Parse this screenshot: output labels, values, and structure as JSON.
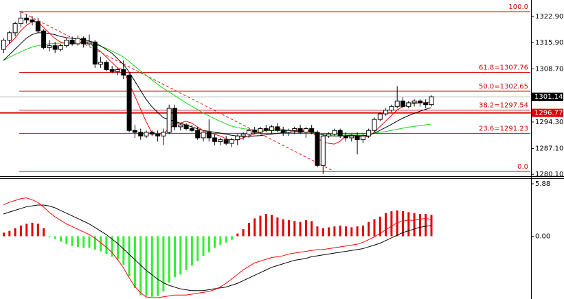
{
  "chart_data": [
    {
      "type": "candlestick",
      "ylim": [
        1279.39,
        1327.4
      ],
      "yticks": [
        {
          "value": 1322.9,
          "label": "1322.90"
        },
        {
          "value": 1315.9,
          "label": "1315.90"
        },
        {
          "value": 1308.7,
          "label": "1308.70"
        },
        {
          "value": 1294.3,
          "label": "1294.30"
        },
        {
          "value": 1287.1,
          "label": "1287.10"
        },
        {
          "value": 1280.1,
          "label": "1280.10"
        }
      ],
      "up_color": "#ffffff",
      "down_color": "#000000",
      "candles": [
        [
          1314,
          1317,
          1313,
          1316.5
        ],
        [
          1316.5,
          1319,
          1315.5,
          1318.5
        ],
        [
          1318.5,
          1321.5,
          1317.5,
          1321
        ],
        [
          1321,
          1324.3,
          1320,
          1322.5
        ],
        [
          1322.5,
          1323.5,
          1321,
          1322
        ],
        [
          1322,
          1323,
          1320.5,
          1321.5
        ],
        [
          1321.5,
          1322.5,
          1318.5,
          1319
        ],
        [
          1319,
          1319.5,
          1314,
          1314.5
        ],
        [
          1314.5,
          1316.5,
          1313.5,
          1315
        ],
        [
          1315,
          1316,
          1313,
          1314
        ],
        [
          1314,
          1315.5,
          1313.5,
          1315
        ],
        [
          1315,
          1317,
          1314.5,
          1316.5
        ],
        [
          1316.5,
          1317.5,
          1315,
          1315.5
        ],
        [
          1315.5,
          1317.8,
          1315,
          1317
        ],
        [
          1317,
          1317.5,
          1314.5,
          1315.5
        ],
        [
          1315.5,
          1318,
          1315,
          1316
        ],
        [
          1316,
          1316.5,
          1309,
          1310
        ],
        [
          1310,
          1312,
          1309,
          1310.5
        ],
        [
          1310.5,
          1311,
          1308,
          1308.5
        ],
        [
          1308.5,
          1309.5,
          1307.5,
          1308
        ],
        [
          1308,
          1309,
          1307,
          1308.5
        ],
        [
          1308.5,
          1311,
          1306,
          1307
        ],
        [
          1307,
          1307.5,
          1291.5,
          1292
        ],
        [
          1292,
          1293.5,
          1290,
          1291.5
        ],
        [
          1291.5,
          1292.5,
          1289.5,
          1290.5
        ],
        [
          1290.5,
          1292,
          1290,
          1291.5
        ],
        [
          1291.5,
          1292,
          1290.5,
          1291
        ],
        [
          1291,
          1292,
          1289,
          1290.5
        ],
        [
          1290.5,
          1292.5,
          1288,
          1291.5
        ],
        [
          1291.5,
          1299,
          1291,
          1298
        ],
        [
          1298,
          1299,
          1292,
          1293
        ],
        [
          1293,
          1294,
          1292,
          1293.5
        ],
        [
          1293.5,
          1294,
          1292,
          1292.5
        ],
        [
          1292.5,
          1293.5,
          1291.5,
          1292
        ],
        [
          1292,
          1293,
          1289.5,
          1290
        ],
        [
          1290,
          1292,
          1289,
          1291.5
        ],
        [
          1291.5,
          1295,
          1289,
          1290
        ],
        [
          1290,
          1291,
          1288,
          1289
        ],
        [
          1289,
          1290,
          1288,
          1289.5
        ],
        [
          1289.5,
          1290.5,
          1288,
          1288.5
        ],
        [
          1288.5,
          1290,
          1287.5,
          1289.5
        ],
        [
          1289.5,
          1291,
          1288,
          1290.5
        ],
        [
          1290.5,
          1291.5,
          1289.5,
          1291
        ],
        [
          1291,
          1292.5,
          1290,
          1292
        ],
        [
          1292,
          1293,
          1291,
          1291.5
        ],
        [
          1291.5,
          1293,
          1291,
          1292.5
        ],
        [
          1292.5,
          1293.5,
          1291.5,
          1292
        ],
        [
          1292,
          1293.5,
          1291,
          1293
        ],
        [
          1293,
          1294,
          1291.5,
          1292
        ],
        [
          1292,
          1293,
          1290.5,
          1291.5
        ],
        [
          1291.5,
          1292.5,
          1290.5,
          1292
        ],
        [
          1292,
          1293,
          1291,
          1292.5
        ],
        [
          1292.5,
          1293.5,
          1291,
          1291.5
        ],
        [
          1291.5,
          1293,
          1290,
          1292.5
        ],
        [
          1292.5,
          1293.5,
          1291,
          1291.5
        ],
        [
          1291.5,
          1292,
          1282,
          1282.5
        ],
        [
          1282.5,
          1291,
          1280.2,
          1290.5
        ],
        [
          1290.5,
          1291.5,
          1290,
          1291
        ],
        [
          1291,
          1292.5,
          1290.5,
          1292
        ],
        [
          1292,
          1292.5,
          1290,
          1290.5
        ],
        [
          1290.5,
          1291.5,
          1289,
          1290
        ],
        [
          1290,
          1291,
          1289,
          1290.5
        ],
        [
          1290.5,
          1291.5,
          1285.5,
          1289.5
        ],
        [
          1289.5,
          1291,
          1288.5,
          1290.5
        ],
        [
          1290.5,
          1292.5,
          1290,
          1292
        ],
        [
          1292,
          1295.5,
          1291.5,
          1295
        ],
        [
          1295,
          1297,
          1294.5,
          1296.5
        ],
        [
          1296.5,
          1298,
          1296,
          1297.5
        ],
        [
          1297.5,
          1299,
          1297,
          1298.5
        ],
        [
          1298.5,
          1304,
          1298,
          1300
        ],
        [
          1300,
          1301,
          1298,
          1298.5
        ],
        [
          1298.5,
          1300,
          1298,
          1299.5
        ],
        [
          1299.5,
          1300.5,
          1298.5,
          1300
        ],
        [
          1300,
          1300.5,
          1298.5,
          1299.5
        ],
        [
          1299.5,
          1300.5,
          1298,
          1299
        ],
        [
          1299,
          1301.5,
          1298.5,
          1301.14
        ]
      ],
      "series": [
        {
          "color": "#22cc22",
          "values": [
            1311,
            1311.8,
            1312.6,
            1313.3,
            1314,
            1314.6,
            1315,
            1315.3,
            1315.5,
            1315.6,
            1315.7,
            1315.8,
            1315.8,
            1315.8,
            1315.7,
            1315.6,
            1315.3,
            1314.9,
            1314.3,
            1313.6,
            1312.8,
            1312,
            1310.8,
            1309.5,
            1308.2,
            1307,
            1305.8,
            1304.6,
            1303.5,
            1302.5,
            1301.5,
            1300.5,
            1299.5,
            1298.6,
            1297.7,
            1296.8,
            1296,
            1295.2,
            1294.5,
            1293.8,
            1293.2,
            1292.8,
            1292.5,
            1292.3,
            1292.2,
            1292.1,
            1292,
            1292,
            1292,
            1292,
            1291.9,
            1291.8,
            1291.7,
            1291.6,
            1291.5,
            1291.3,
            1291.1,
            1291,
            1290.9,
            1290.9,
            1290.9,
            1290.9,
            1290.9,
            1291,
            1291.1,
            1291.3,
            1291.5,
            1291.7,
            1292,
            1292.3,
            1292.6,
            1292.9,
            1293.1,
            1293.3,
            1293.5,
            1293.7
          ]
        },
        {
          "color": "#000000",
          "values": [
            1311,
            1312.5,
            1314,
            1315.5,
            1317,
            1318,
            1318.5,
            1318.5,
            1318.3,
            1318,
            1317.5,
            1317.2,
            1317,
            1316.8,
            1316.6,
            1316.3,
            1315.8,
            1315,
            1314,
            1313,
            1311.5,
            1310,
            1308,
            1305.5,
            1303,
            1300.5,
            1298.5,
            1297,
            1295.5,
            1295,
            1294.5,
            1294,
            1293.5,
            1293,
            1292.5,
            1292,
            1291.8,
            1291.5,
            1291.3,
            1291,
            1290.7,
            1290.5,
            1290.4,
            1290.4,
            1290.5,
            1290.6,
            1290.8,
            1291,
            1291.2,
            1291.4,
            1291.5,
            1291.6,
            1291.7,
            1291.8,
            1291.8,
            1291.2,
            1290.8,
            1290.6,
            1290.5,
            1290.5,
            1290.6,
            1290.7,
            1290.6,
            1290.6,
            1290.7,
            1291.2,
            1292,
            1292.8,
            1293.6,
            1294.5,
            1295.3,
            1296,
            1296.6,
            1297.2,
            1297.7,
            1298.2
          ]
        },
        {
          "color": "#ff0000",
          "values": [
            1314,
            1315.5,
            1317,
            1319,
            1320.5,
            1321.5,
            1321.5,
            1320,
            1318.5,
            1317,
            1316,
            1315.5,
            1315.5,
            1315.8,
            1316,
            1316,
            1314.5,
            1313.5,
            1312,
            1310.5,
            1309,
            1308.5,
            1305,
            1301.5,
            1298,
            1294.5,
            1291.5,
            1291,
            1291,
            1292.5,
            1293.5,
            1294,
            1294.5,
            1294,
            1293,
            1292,
            1291.5,
            1291,
            1290.5,
            1289.8,
            1289.3,
            1289.5,
            1290,
            1290.5,
            1291,
            1291.5,
            1292,
            1292.3,
            1292.5,
            1292.3,
            1292,
            1292,
            1292,
            1292,
            1292,
            1290,
            1289,
            1288.5,
            1288.3,
            1289,
            1290.5,
            1290.5,
            1290.5,
            1290.2,
            1290.3,
            1291.5,
            1293,
            1294.5,
            1296,
            1297.5,
            1298.5,
            1299,
            1299.3,
            1299.5,
            1299.5,
            1299.8
          ]
        }
      ],
      "fib_color": "#d00000",
      "fib_levels": [
        {
          "value": 1324.24,
          "label": "100.0"
        },
        {
          "value": 1307.76,
          "label": "61.8=1307.76"
        },
        {
          "value": 1302.65,
          "label": "50.0=1302.65"
        },
        {
          "value": 1297.54,
          "label": "38.2=1297.54"
        },
        {
          "value": 1291.23,
          "label": "23.6=1291.23"
        },
        {
          "value": 1280.88,
          "label": "0.0"
        }
      ],
      "trendline": {
        "x": [
          3,
          58
        ],
        "y": [
          1324.24,
          1280.88
        ],
        "color": "#e00000"
      },
      "price_lines": [
        {
          "value": 1301.14,
          "color": "#bbbbbb",
          "box": "#000000"
        },
        {
          "value": 1296.77,
          "color": "#e00000",
          "box": "#e00000"
        }
      ]
    },
    {
      "type": "macd",
      "ylim": [
        -7.04,
        6.42
      ],
      "yticks": [
        {
          "value": 5.88,
          "label": "5.88"
        },
        {
          "value": 0,
          "label": "0.00"
        }
      ],
      "histogram": {
        "up_color": "#e00000",
        "down_color": "#33ee33",
        "values": [
          0.4,
          0.6,
          0.9,
          1.2,
          1.4,
          1.5,
          1.4,
          0.9,
          -0.1,
          -0.3,
          -0.6,
          -0.9,
          -1.1,
          -1.2,
          -1.3,
          -1.3,
          -1.5,
          -1.7,
          -2,
          -2.3,
          -2.6,
          -3.2,
          -4.5,
          -5.8,
          -6.6,
          -6.7,
          -6.8,
          -6.7,
          -6.2,
          -5.2,
          -4.6,
          -4.3,
          -3.8,
          -3.3,
          -2.8,
          -2.2,
          -1.8,
          -1.3,
          -1.0,
          -0.7,
          -0.4,
          0.3,
          0.8,
          1.5,
          2.0,
          2.3,
          2.5,
          2.4,
          2.1,
          1.9,
          1.8,
          1.7,
          1.6,
          1.8,
          1.7,
          1.1,
          0.9,
          1.0,
          1.1,
          1.2,
          1.1,
          1.0,
          1.1,
          1.2,
          1.6,
          1.9,
          2.2,
          2.6,
          2.8,
          2.9,
          2.8,
          2.7,
          2.6,
          2.5,
          2.5,
          2.4
        ]
      },
      "series": [
        {
          "color": "#000000",
          "values": [
            2.5,
            2.7,
            2.9,
            3.1,
            3.3,
            3.4,
            3.5,
            3.5,
            3.4,
            3.2,
            2.9,
            2.6,
            2.3,
            2.0,
            1.7,
            1.4,
            1.0,
            0.6,
            0.2,
            -0.3,
            -0.8,
            -1.4,
            -2.0,
            -2.6,
            -3.2,
            -3.8,
            -4.3,
            -4.8,
            -5.2,
            -5.5,
            -5.7,
            -5.9,
            -6.0,
            -6.1,
            -6.1,
            -6.1,
            -6.0,
            -5.9,
            -5.8,
            -5.7,
            -5.5,
            -5.3,
            -5.0,
            -4.7,
            -4.4,
            -4.1,
            -3.8,
            -3.5,
            -3.3,
            -3.1,
            -2.9,
            -2.7,
            -2.6,
            -2.5,
            -2.3,
            -2.2,
            -2.1,
            -2.0,
            -1.9,
            -1.8,
            -1.7,
            -1.6,
            -1.5,
            -1.4,
            -1.2,
            -1.0,
            -0.8,
            -0.5,
            -0.2,
            0.1,
            0.4,
            0.6,
            0.8,
            1.0,
            1.1,
            1.2
          ]
        },
        {
          "color": "#ff0000",
          "values": [
            3.5,
            3.8,
            4,
            4.2,
            4.3,
            4.1,
            3.8,
            3.3,
            2.7,
            2.2,
            1.8,
            1.4,
            1.1,
            0.8,
            0.5,
            0.2,
            -0.2,
            -0.7,
            -1.2,
            -1.8,
            -2.6,
            -3.5,
            -4.6,
            -5.6,
            -6.3,
            -6.8,
            -6.9,
            -6.9,
            -6.8,
            -6.7,
            -6.6,
            -6.6,
            -6.6,
            -6.5,
            -6.4,
            -6.3,
            -6.2,
            -6.0,
            -5.7,
            -5.3,
            -4.8,
            -4.3,
            -3.8,
            -3.4,
            -3.0,
            -2.8,
            -2.6,
            -2.4,
            -2.3,
            -2.2,
            -2.0,
            -1.9,
            -1.8,
            -1.7,
            -1.6,
            -1.5,
            -1.5,
            -1.4,
            -1.3,
            -1.2,
            -1.1,
            -1.0,
            -0.9,
            -0.7,
            -0.4,
            -0.1,
            0.3,
            0.7,
            1.1,
            1.5,
            1.7,
            1.8,
            1.8,
            1.9,
            2.0,
            1.9
          ]
        }
      ]
    }
  ]
}
